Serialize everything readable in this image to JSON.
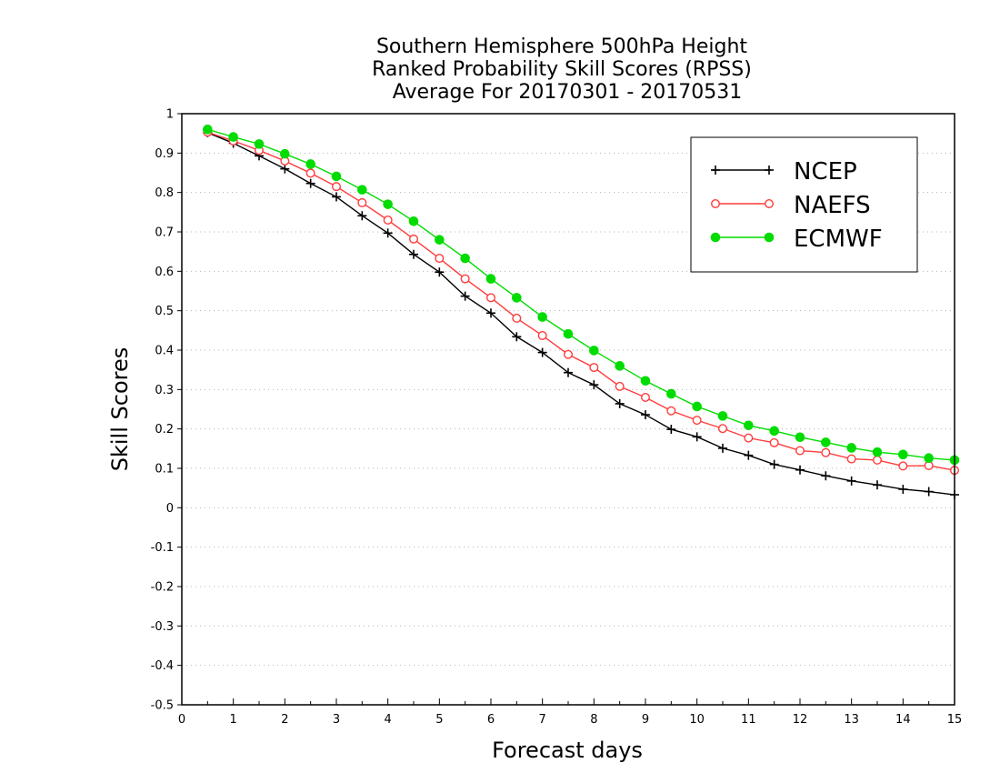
{
  "chart_data": {
    "type": "line",
    "title": [
      "Southern Hemisphere 500hPa Height",
      "Ranked Probability Skill Scores (RPSS)",
      "Average For 20170301 - 20170531"
    ],
    "xlabel": "Forecast days",
    "ylabel": "Skill Scores",
    "xlim": [
      0,
      15
    ],
    "ylim": [
      -0.5,
      1
    ],
    "x_ticks": [
      0,
      1,
      2,
      3,
      4,
      5,
      6,
      7,
      8,
      9,
      10,
      11,
      12,
      13,
      14,
      15
    ],
    "y_ticks": [
      -0.5,
      -0.4,
      -0.3,
      -0.2,
      -0.1,
      0,
      0.1,
      0.2,
      0.3,
      0.4,
      0.5,
      0.6,
      0.7,
      0.8,
      0.9,
      1
    ],
    "y_tick_labels": [
      "-0.5",
      "-0.4",
      "-0.3",
      "-0.2",
      "-0.1",
      "0",
      "0.1",
      "0.2",
      "0.3",
      "0.4",
      "0.5",
      "0.6",
      "0.7",
      "0.8",
      "0.9",
      "1"
    ],
    "grid": "horizontal dotted",
    "legend_position": "top-right",
    "x": [
      0.5,
      1,
      1.5,
      2,
      2.5,
      3,
      3.5,
      4,
      4.5,
      5,
      5.5,
      6,
      6.5,
      7,
      7.5,
      8,
      8.5,
      9,
      9.5,
      10,
      10.5,
      11,
      11.5,
      12,
      12.5,
      13,
      13.5,
      14,
      14.5,
      15
    ],
    "series": [
      {
        "name": "NCEP",
        "color": "#000000",
        "marker": "plus",
        "values": [
          0.952,
          0.925,
          0.893,
          0.86,
          0.823,
          0.789,
          0.741,
          0.697,
          0.643,
          0.598,
          0.537,
          0.494,
          0.434,
          0.394,
          0.343,
          0.312,
          0.264,
          0.236,
          0.199,
          0.18,
          0.151,
          0.133,
          0.11,
          0.096,
          0.081,
          0.068,
          0.058,
          0.047,
          0.041,
          0.033
        ]
      },
      {
        "name": "NAEFS",
        "color": "#ff3c3c",
        "marker": "open-circle",
        "values": [
          0.953,
          0.931,
          0.907,
          0.88,
          0.849,
          0.815,
          0.774,
          0.73,
          0.682,
          0.633,
          0.581,
          0.533,
          0.481,
          0.437,
          0.389,
          0.356,
          0.308,
          0.28,
          0.246,
          0.222,
          0.201,
          0.177,
          0.165,
          0.145,
          0.14,
          0.124,
          0.121,
          0.106,
          0.107,
          0.095
        ]
      },
      {
        "name": "ECMWF",
        "color": "#00dc00",
        "marker": "filled-circle",
        "values": [
          0.96,
          0.941,
          0.923,
          0.898,
          0.872,
          0.841,
          0.807,
          0.77,
          0.727,
          0.68,
          0.633,
          0.581,
          0.533,
          0.484,
          0.441,
          0.399,
          0.36,
          0.322,
          0.289,
          0.257,
          0.233,
          0.209,
          0.195,
          0.179,
          0.166,
          0.152,
          0.141,
          0.135,
          0.126,
          0.121
        ]
      }
    ]
  }
}
